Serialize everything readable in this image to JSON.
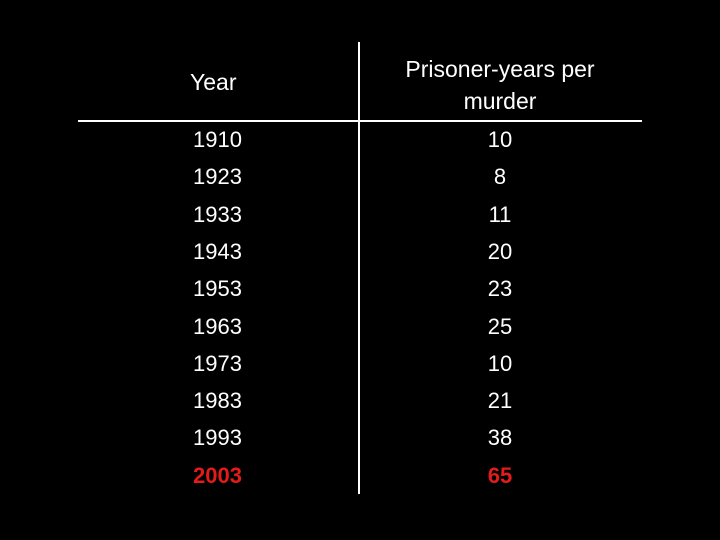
{
  "table": {
    "headers": [
      "Year",
      "Prisoner-years per murder"
    ],
    "rows": [
      [
        1910,
        10
      ],
      [
        1923,
        8
      ],
      [
        1933,
        11
      ],
      [
        1943,
        20
      ],
      [
        1953,
        23
      ],
      [
        1963,
        25
      ],
      [
        1973,
        10
      ],
      [
        1983,
        21
      ],
      [
        1993,
        38
      ],
      [
        2003,
        65
      ]
    ]
  }
}
